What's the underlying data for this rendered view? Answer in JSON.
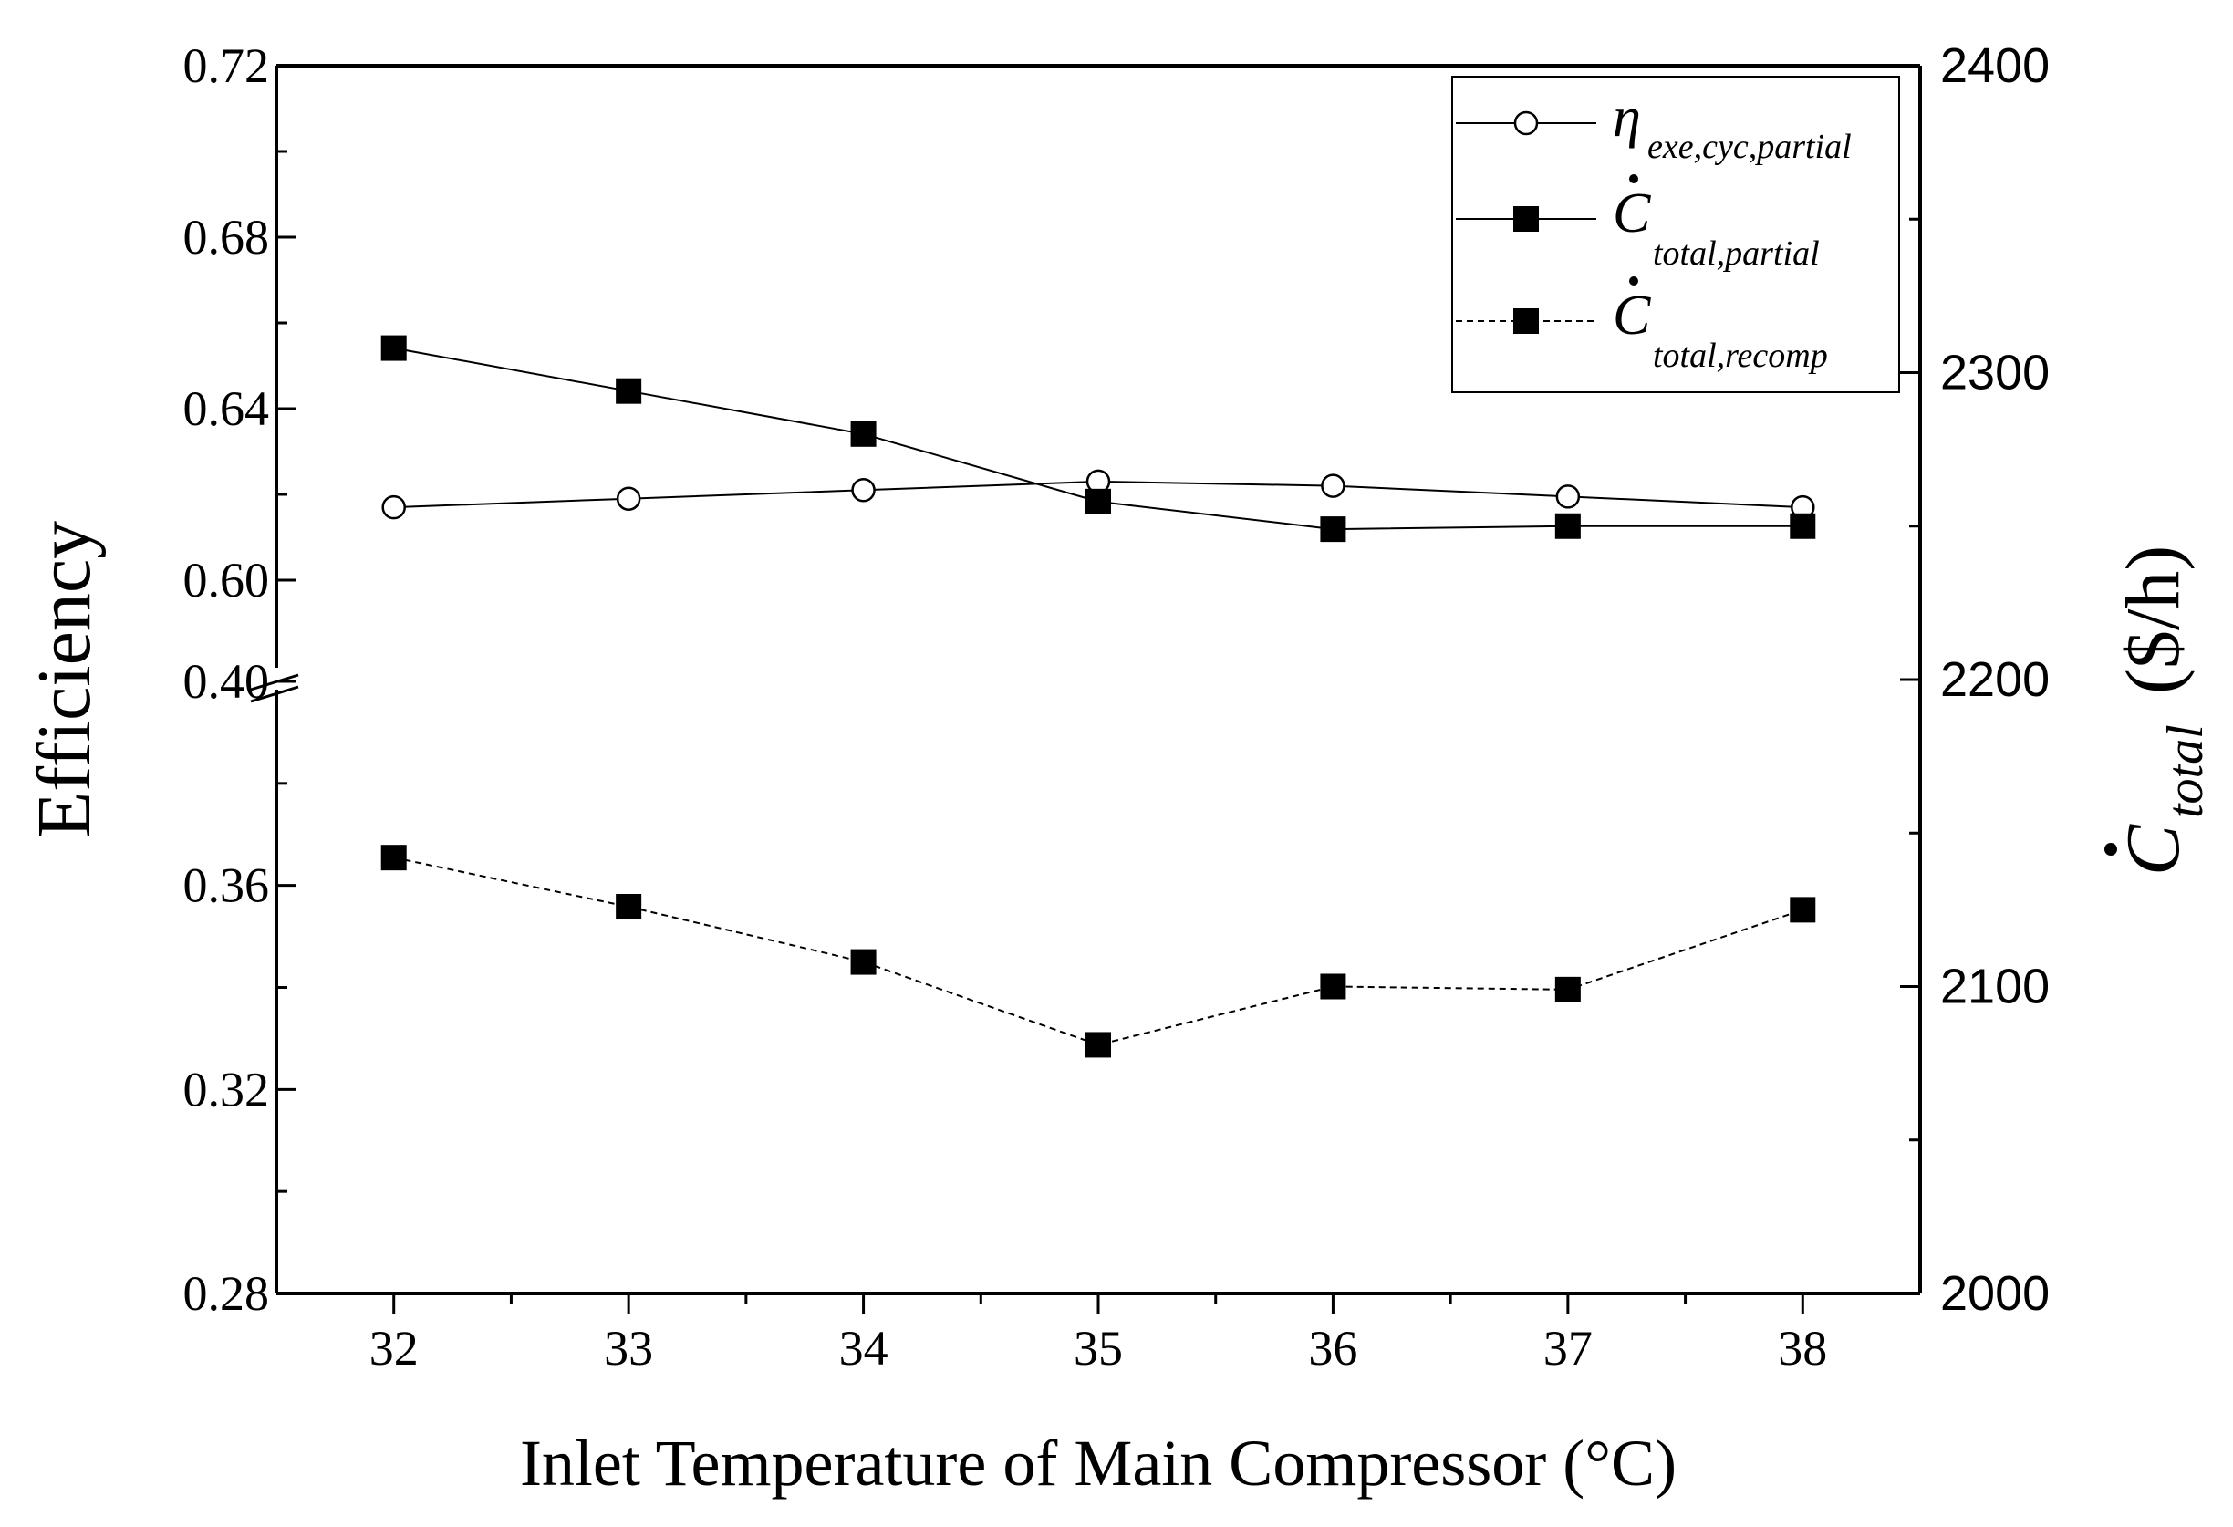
{
  "chart_data": {
    "type": "line",
    "x_label": "Inlet Temperature of Main Compressor (°C)",
    "y_left_label": "Efficiency",
    "y_right_label": {
      "base": "C",
      "sub": "total",
      "tail": "($/h)"
    },
    "x": [
      32,
      33,
      34,
      35,
      36,
      37,
      38
    ],
    "x_tick_labels": [
      "32",
      "33",
      "34",
      "35",
      "36",
      "37",
      "38"
    ],
    "x_range": [
      31.5,
      38.5
    ],
    "y_left": {
      "broken": true,
      "upper_range": [
        0.6,
        0.72
      ],
      "lower_range": [
        0.28,
        0.4
      ],
      "upper_tick_labels": [
        "0.60",
        "0.64",
        "0.68",
        "0.72"
      ],
      "lower_tick_labels": [
        "0.28",
        "0.32",
        "0.36",
        "0.40"
      ]
    },
    "y_right": {
      "range": [
        2000,
        2400
      ],
      "tick_labels": [
        "2000",
        "2100",
        "2200",
        "2300",
        "2400"
      ]
    },
    "series": [
      {
        "key": "eta",
        "axis": "left",
        "legend": {
          "base": "η",
          "sub": "exe,cyc,partial"
        },
        "marker": "open-circle",
        "line": "solid",
        "values": [
          0.617,
          0.619,
          0.621,
          0.623,
          0.622,
          0.6195,
          0.617
        ]
      },
      {
        "key": "ctotal_partial",
        "axis": "right",
        "legend": {
          "base": "C",
          "sub": "total,partial"
        },
        "marker": "filled-square",
        "line": "solid",
        "values": [
          2308,
          2294,
          2280,
          2258,
          2249,
          2250,
          2250
        ]
      },
      {
        "key": "ctotal_recomp",
        "axis": "right",
        "legend": {
          "base": "C",
          "sub": "total,recomp"
        },
        "marker": "filled-square",
        "line": "dashed",
        "values": [
          2142,
          2126,
          2108,
          2081,
          2100,
          2099,
          2125
        ]
      }
    ]
  }
}
